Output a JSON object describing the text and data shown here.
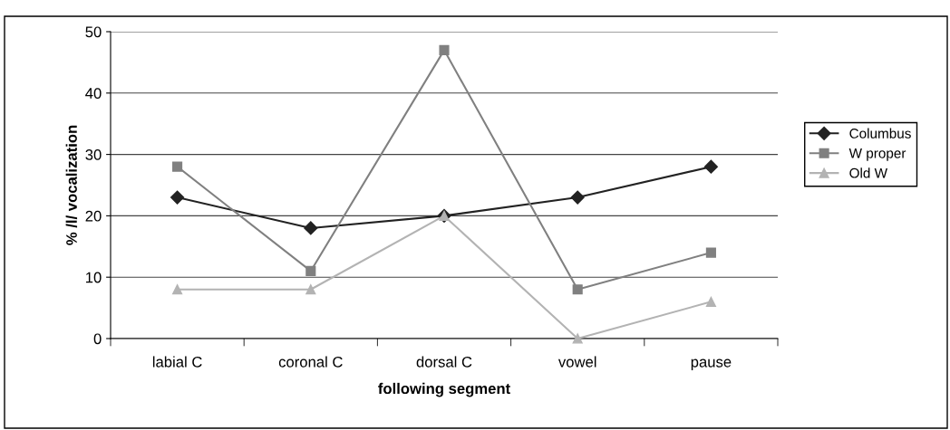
{
  "chart_data": {
    "type": "line",
    "xlabel": "following segment",
    "ylabel": "% /l/ vocalization",
    "categories": [
      "labial C",
      "coronal C",
      "dorsal C",
      "vowel",
      "pause"
    ],
    "series": [
      {
        "name": "Columbus",
        "color": "#222222",
        "marker": "diamond",
        "values": [
          23,
          18,
          20,
          23,
          28
        ]
      },
      {
        "name": "W proper",
        "color": "#808080",
        "marker": "square",
        "values": [
          28,
          11,
          47,
          8,
          14
        ]
      },
      {
        "name": "Old W",
        "color": "#b3b3b3",
        "marker": "triangle",
        "values": [
          8,
          8,
          20,
          0,
          6
        ]
      }
    ],
    "ylim": [
      0,
      50
    ],
    "yticks": [
      0,
      10,
      20,
      30,
      40,
      50
    ],
    "grid": "y",
    "legend": "right"
  }
}
